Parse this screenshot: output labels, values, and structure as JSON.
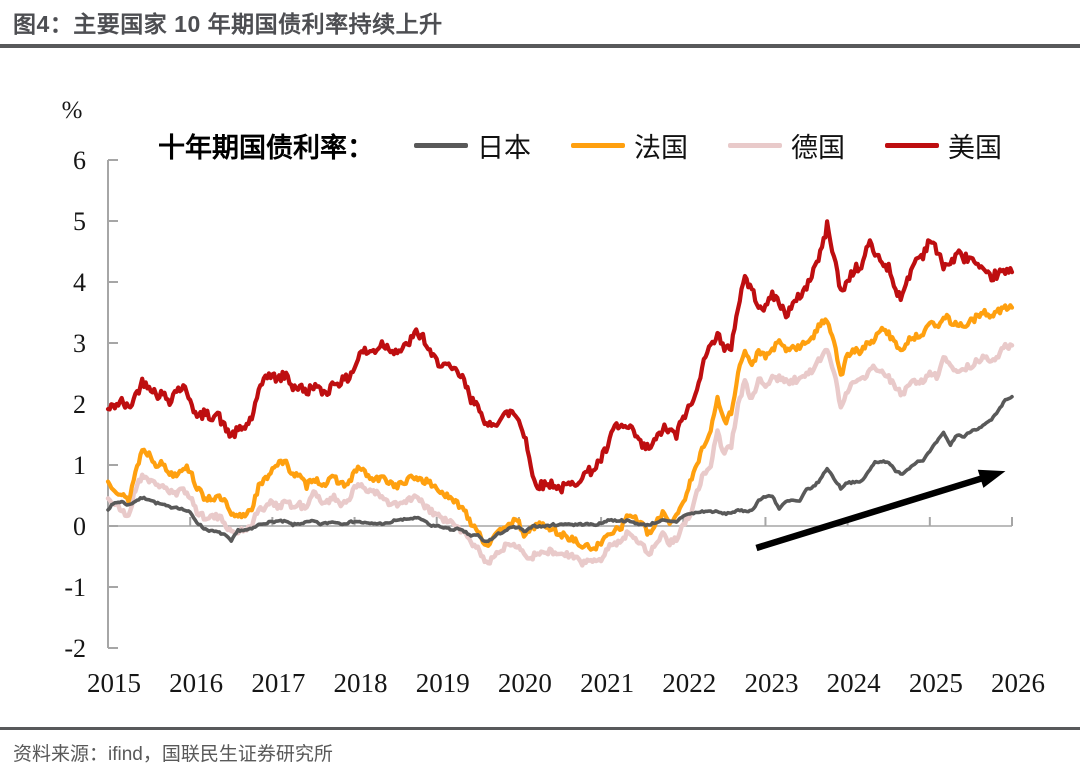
{
  "header": {
    "title": "图4：主要国家 10 年期国债利率持续上升"
  },
  "footer": {
    "source": "资料来源：ifind，国联民生证券研究所"
  },
  "chart_data": {
    "type": "line",
    "unit_label": "%",
    "legend_prefix": "十年期国债利率：",
    "legend_position": "top",
    "grid": false,
    "xlim": [
      2015,
      2026
    ],
    "ylim": [
      -2,
      6
    ],
    "x_ticks": [
      2015,
      2016,
      2017,
      2018,
      2019,
      2020,
      2021,
      2022,
      2023,
      2024,
      2025,
      2026
    ],
    "y_ticks": [
      6,
      5,
      4,
      3,
      2,
      1,
      0,
      -1,
      -2
    ],
    "axis_color": "#a6a6a6",
    "start_year": 2015,
    "points_per_year": 12,
    "series": [
      {
        "name": "日本",
        "color": "#595959",
        "width": 3.6,
        "noise": 0.016,
        "seed": 7,
        "values": [
          0.28,
          0.38,
          0.4,
          0.34,
          0.41,
          0.46,
          0.44,
          0.38,
          0.35,
          0.31,
          0.31,
          0.27,
          0.22,
          0.06,
          -0.04,
          -0.08,
          -0.1,
          -0.14,
          -0.25,
          -0.07,
          -0.07,
          -0.05,
          0.02,
          0.05,
          0.07,
          0.08,
          0.07,
          0.02,
          0.04,
          0.06,
          0.08,
          0.03,
          0.05,
          0.07,
          0.04,
          0.05,
          0.08,
          0.06,
          0.04,
          0.04,
          0.04,
          0.04,
          0.1,
          0.1,
          0.12,
          0.13,
          0.1,
          0.01,
          0.0,
          -0.02,
          -0.06,
          -0.05,
          -0.09,
          -0.16,
          -0.15,
          -0.26,
          -0.22,
          -0.13,
          -0.08,
          -0.02,
          -0.03,
          -0.1,
          0.01,
          -0.01,
          0.0,
          0.02,
          0.02,
          0.04,
          0.02,
          0.03,
          0.03,
          0.02,
          0.04,
          0.1,
          0.09,
          0.09,
          0.08,
          0.05,
          0.02,
          0.02,
          0.06,
          0.09,
          0.07,
          0.07,
          0.17,
          0.2,
          0.22,
          0.24,
          0.24,
          0.23,
          0.2,
          0.22,
          0.25,
          0.25,
          0.25,
          0.42,
          0.48,
          0.5,
          0.28,
          0.4,
          0.42,
          0.4,
          0.6,
          0.64,
          0.76,
          0.95,
          0.78,
          0.62,
          0.72,
          0.71,
          0.73,
          0.88,
          1.05,
          1.06,
          1.05,
          0.89,
          0.86,
          0.95,
          1.05,
          1.08,
          1.22,
          1.38,
          1.52,
          1.33,
          1.5,
          1.46,
          1.56,
          1.6,
          1.66,
          1.74,
          1.88,
          2.06,
          2.12
        ]
      },
      {
        "name": "法国",
        "color": "#FFA00F",
        "width": 4.2,
        "noise": 0.055,
        "seed": 13,
        "values": [
          0.72,
          0.62,
          0.5,
          0.42,
          0.88,
          1.25,
          1.18,
          1.02,
          1.02,
          0.86,
          0.86,
          0.97,
          0.92,
          0.62,
          0.47,
          0.46,
          0.46,
          0.42,
          0.16,
          0.15,
          0.19,
          0.3,
          0.64,
          0.76,
          0.95,
          1.05,
          1.02,
          0.86,
          0.8,
          0.66,
          0.8,
          0.7,
          0.7,
          0.8,
          0.7,
          0.67,
          0.88,
          0.96,
          0.8,
          0.75,
          0.79,
          0.73,
          0.66,
          0.69,
          0.77,
          0.8,
          0.75,
          0.7,
          0.62,
          0.53,
          0.43,
          0.37,
          0.28,
          0.06,
          -0.06,
          -0.3,
          -0.26,
          -0.12,
          0.02,
          0.08,
          0.04,
          -0.18,
          -0.02,
          0.04,
          -0.03,
          -0.06,
          -0.14,
          -0.17,
          -0.23,
          -0.32,
          -0.35,
          -0.35,
          -0.3,
          -0.12,
          -0.06,
          0.0,
          0.18,
          0.14,
          0.02,
          -0.14,
          0.02,
          0.24,
          0.06,
          0.18,
          0.4,
          0.7,
          1.0,
          1.35,
          1.55,
          2.1,
          1.7,
          1.85,
          2.52,
          2.88,
          2.6,
          2.9,
          2.75,
          2.9,
          3.0,
          2.9,
          2.92,
          2.92,
          3.02,
          3.12,
          3.3,
          3.4,
          3.05,
          2.45,
          2.8,
          2.88,
          2.84,
          3.02,
          3.06,
          3.22,
          3.16,
          2.98,
          2.9,
          3.06,
          3.1,
          3.18,
          3.34,
          3.24,
          3.46,
          3.36,
          3.3,
          3.28,
          3.36,
          3.43,
          3.49,
          3.46,
          3.52,
          3.58,
          3.58
        ]
      },
      {
        "name": "德国",
        "color": "#E9CACA",
        "width": 4.5,
        "noise": 0.055,
        "seed": 21,
        "values": [
          0.46,
          0.35,
          0.25,
          0.16,
          0.6,
          0.84,
          0.76,
          0.66,
          0.68,
          0.55,
          0.52,
          0.6,
          0.5,
          0.22,
          0.16,
          0.16,
          0.14,
          0.08,
          -0.12,
          -0.09,
          -0.05,
          0.02,
          0.28,
          0.29,
          0.4,
          0.32,
          0.42,
          0.3,
          0.35,
          0.28,
          0.55,
          0.42,
          0.41,
          0.46,
          0.37,
          0.43,
          0.6,
          0.68,
          0.58,
          0.57,
          0.45,
          0.37,
          0.35,
          0.36,
          0.44,
          0.46,
          0.36,
          0.25,
          0.18,
          0.11,
          0.05,
          -0.01,
          -0.12,
          -0.28,
          -0.33,
          -0.6,
          -0.56,
          -0.44,
          -0.33,
          -0.26,
          -0.32,
          -0.48,
          -0.5,
          -0.46,
          -0.42,
          -0.42,
          -0.48,
          -0.46,
          -0.52,
          -0.6,
          -0.58,
          -0.58,
          -0.52,
          -0.34,
          -0.3,
          -0.22,
          -0.12,
          -0.18,
          -0.3,
          -0.46,
          -0.3,
          -0.12,
          -0.28,
          -0.2,
          0.02,
          0.18,
          0.58,
          0.85,
          1.02,
          1.52,
          1.2,
          1.32,
          2.0,
          2.35,
          2.05,
          2.42,
          2.28,
          2.44,
          2.42,
          2.36,
          2.38,
          2.42,
          2.48,
          2.56,
          2.74,
          2.88,
          2.55,
          1.95,
          2.24,
          2.4,
          2.38,
          2.5,
          2.62,
          2.52,
          2.44,
          2.24,
          2.16,
          2.32,
          2.38,
          2.36,
          2.54,
          2.44,
          2.74,
          2.62,
          2.56,
          2.57,
          2.63,
          2.71,
          2.75,
          2.71,
          2.81,
          2.93,
          2.96
        ]
      },
      {
        "name": "美国",
        "color": "#BE0E10",
        "width": 4.2,
        "noise": 0.08,
        "seed": 42,
        "values": [
          1.9,
          1.98,
          2.04,
          1.92,
          2.14,
          2.36,
          2.32,
          2.16,
          2.16,
          2.06,
          2.24,
          2.27,
          2.1,
          1.76,
          1.84,
          1.8,
          1.84,
          1.62,
          1.48,
          1.56,
          1.62,
          1.78,
          2.16,
          2.5,
          2.44,
          2.42,
          2.48,
          2.28,
          2.28,
          2.18,
          2.32,
          2.2,
          2.2,
          2.36,
          2.36,
          2.42,
          2.6,
          2.88,
          2.84,
          2.88,
          3.0,
          2.92,
          2.88,
          2.88,
          3.02,
          3.16,
          3.1,
          2.82,
          2.7,
          2.66,
          2.56,
          2.52,
          2.38,
          2.04,
          2.06,
          1.6,
          1.7,
          1.72,
          1.82,
          1.88,
          1.74,
          1.44,
          0.8,
          0.66,
          0.68,
          0.7,
          0.6,
          0.66,
          0.68,
          0.8,
          0.88,
          0.94,
          1.1,
          1.3,
          1.64,
          1.62,
          1.6,
          1.5,
          1.3,
          1.28,
          1.4,
          1.6,
          1.56,
          1.48,
          1.8,
          1.95,
          2.2,
          2.8,
          2.92,
          3.2,
          2.85,
          2.95,
          3.6,
          4.1,
          3.85,
          3.65,
          3.55,
          3.82,
          3.65,
          3.48,
          3.6,
          3.78,
          3.92,
          4.2,
          4.45,
          4.92,
          4.45,
          3.82,
          4.02,
          4.22,
          4.22,
          4.65,
          4.48,
          4.32,
          4.24,
          3.88,
          3.74,
          4.12,
          4.38,
          4.45,
          4.72,
          4.5,
          4.28,
          4.3,
          4.46,
          4.4,
          4.4,
          4.24,
          4.12,
          4.08,
          4.14,
          4.16,
          4.16
        ]
      }
    ],
    "annotation_arrow": {
      "x1": 2022.89,
      "y1": -0.36,
      "x2": 2025.92,
      "y2": 0.9,
      "color": "#000000"
    }
  }
}
